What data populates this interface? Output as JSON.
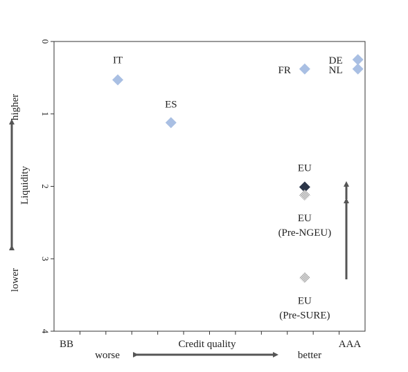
{
  "chart_data": {
    "type": "scatter",
    "title": "",
    "y_axis": {
      "reversed": true,
      "ylim": [
        0,
        4
      ],
      "ticks": [
        "0",
        "1",
        "2",
        "3",
        "4"
      ],
      "label": "Liquidity",
      "higher_label": "higher",
      "lower_label": "lower"
    },
    "x_axis": {
      "label": "Credit quality",
      "worse_label": "worse",
      "better_label": "better",
      "left_category": "BB",
      "right_category": "AAA",
      "xlim": [
        0,
        1
      ]
    },
    "points": [
      {
        "label": "IT",
        "x": 0.205,
        "y": 0.53,
        "style": "light"
      },
      {
        "label": "ES",
        "x": 0.376,
        "y": 1.12,
        "style": "light"
      },
      {
        "label": "FR",
        "x": 0.806,
        "y": 0.38,
        "style": "light"
      },
      {
        "label": "DE",
        "x": 0.977,
        "y": 0.25,
        "style": "light"
      },
      {
        "label": "NL",
        "x": 0.977,
        "y": 0.38,
        "style": "light"
      },
      {
        "label": "EU",
        "x": 0.806,
        "y": 2.01,
        "style": "dark"
      },
      {
        "label": "EU",
        "sublabel": "(Pre-NGEU)",
        "x": 0.806,
        "y": 2.12,
        "style": "hatched"
      },
      {
        "label": "EU",
        "sublabel": "(Pre-SURE)",
        "x": 0.806,
        "y": 3.26,
        "style": "hatched"
      }
    ],
    "colors": {
      "light": "#a9bfe3",
      "dark": "#2b3548",
      "hatched": "#b4b4b4",
      "arrow": "#555555"
    }
  }
}
